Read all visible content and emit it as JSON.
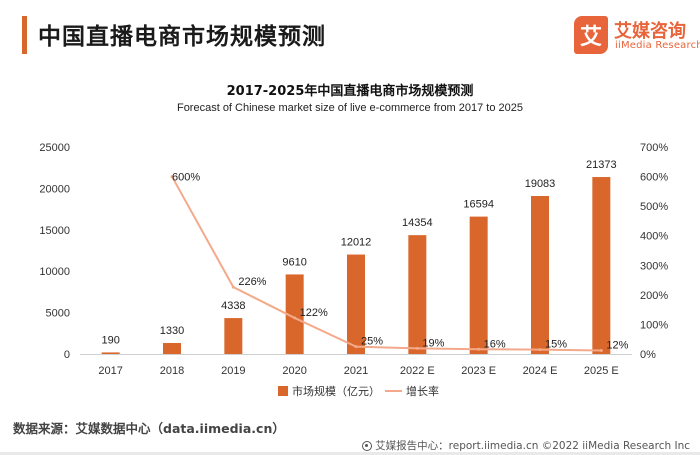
{
  "header": {
    "title": "中国直播电商市场规模预测"
  },
  "logo": {
    "mark": "艾",
    "name": "艾媒咨询",
    "sub": "iiMedia Research"
  },
  "chart_data": {
    "type": "bar",
    "title": "2017-2025年中国直播电商市场规模预测",
    "subtitle": "Forecast of Chinese market size of live e-commerce from 2017 to 2025",
    "categories": [
      "2017",
      "2018",
      "2019",
      "2020",
      "2021",
      "2022 E",
      "2023 E",
      "2024 E",
      "2025 E"
    ],
    "series": [
      {
        "name": "市场规模（亿元）",
        "type": "bar",
        "axis": "left",
        "color": "#d9672b",
        "values": [
          190,
          1330,
          4338,
          9610,
          12012,
          14354,
          16594,
          19083,
          21373
        ],
        "labels": [
          "190",
          "1330",
          "4338",
          "9610",
          "12012",
          "14354",
          "16594",
          "19083",
          "21373"
        ]
      },
      {
        "name": "增长率",
        "type": "line",
        "axis": "right",
        "color": "#f4a98a",
        "values": [
          null,
          600,
          226,
          122,
          25,
          19,
          16,
          15,
          12
        ],
        "labels": [
          "",
          "600%",
          "226%",
          "122%",
          "25%",
          "19%",
          "16%",
          "15%",
          "12%"
        ]
      }
    ],
    "y_left": {
      "min": 0,
      "max": 25000,
      "step": 5000,
      "ticks": [
        "0",
        "5000",
        "10000",
        "15000",
        "20000",
        "25000"
      ]
    },
    "y_right": {
      "min": 0,
      "max": 700,
      "step": 100,
      "ticks": [
        "0%",
        "100%",
        "200%",
        "300%",
        "400%",
        "500%",
        "600%",
        "700%"
      ]
    },
    "grid": false,
    "legend_position": "bottom-center"
  },
  "footer": {
    "source": "数据来源：艾媒数据中心（data.iimedia.cn）",
    "right": "艾媒报告中心：report.iimedia.cn  ©2022  iiMedia Research  Inc"
  }
}
